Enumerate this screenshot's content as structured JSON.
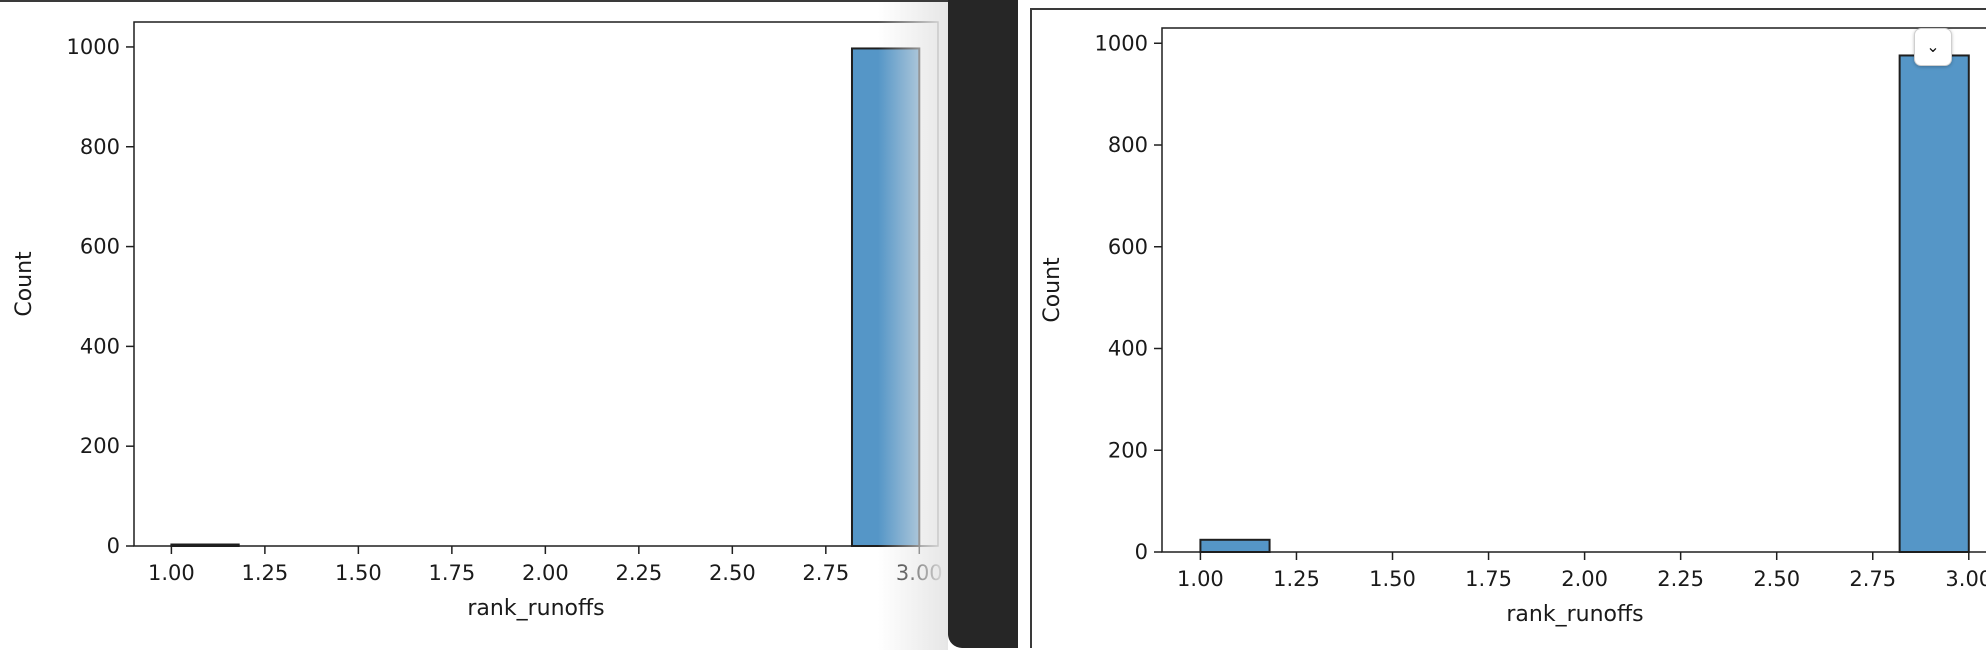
{
  "chart_data": [
    {
      "type": "bar",
      "xlabel": "rank_runoffs",
      "ylabel": "Count",
      "xlim": [
        0.9,
        3.05
      ],
      "ylim": [
        0,
        1050
      ],
      "xticks": [
        "1.00",
        "1.25",
        "1.50",
        "1.75",
        "2.00",
        "2.25",
        "2.50",
        "2.75",
        "3.00"
      ],
      "yticks": [
        "0",
        "200",
        "400",
        "600",
        "800",
        "1000"
      ],
      "bins": [
        {
          "x0": 1.0,
          "x1": 1.18,
          "value": 3
        },
        {
          "x0": 2.82,
          "x1": 3.0,
          "value": 997
        }
      ],
      "grid": false,
      "bar_color": "#5596c7"
    },
    {
      "type": "bar",
      "xlabel": "rank_runoffs",
      "ylabel": "Count",
      "xlim": [
        0.9,
        3.05
      ],
      "ylim": [
        0,
        1030
      ],
      "xticks": [
        "1.00",
        "1.25",
        "1.50",
        "1.75",
        "2.00",
        "2.25",
        "2.50",
        "2.75",
        "3.00"
      ],
      "yticks": [
        "0",
        "200",
        "400",
        "600",
        "800",
        "1000"
      ],
      "bins": [
        {
          "x0": 1.0,
          "x1": 1.18,
          "value": 24
        },
        {
          "x0": 2.82,
          "x1": 3.0,
          "value": 976
        }
      ],
      "grid": false,
      "bar_color": "#5596c7"
    }
  ],
  "controls": {
    "collapse_icon": "chevron-down-icon",
    "collapse_glyph": "⌄"
  }
}
